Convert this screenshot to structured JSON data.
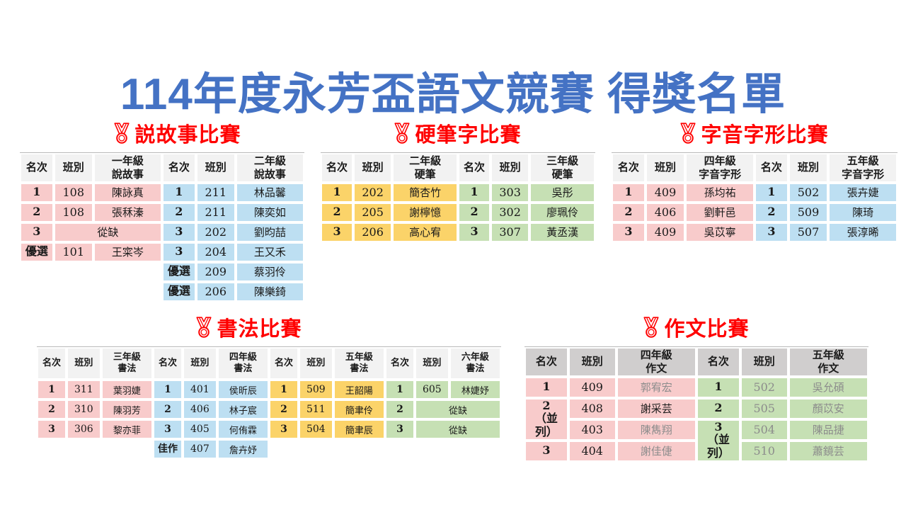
{
  "title": "114年度永芳盃語文競賽 得獎名單",
  "colors": {
    "title_blue": "#4472C4",
    "heading_red": "#FF0000",
    "pink": "#F8CBCB",
    "blue": "#BDDFF2",
    "yellow": "#FBD369",
    "green": "#C6E0B4",
    "header_light": "#F2F2F2",
    "header_gray": "#D0CECE",
    "muted_text": "#8C8C8C"
  },
  "icons": {
    "heading": "medal-icon"
  },
  "col_headers": {
    "rank": "名次",
    "class": "班別"
  },
  "sections": [
    {
      "heading": "説故事比賽",
      "groups": [
        {
          "color": "pink",
          "grade": "一年級\n說故事",
          "rows": [
            [
              {
                "t": "1",
                "rank": true
              },
              {
                "t": "108"
              },
              {
                "t": "陳詠真",
                "name": true
              }
            ],
            [
              {
                "t": "2",
                "rank": true
              },
              {
                "t": "108"
              },
              {
                "t": "張秝溱",
                "name": true
              }
            ],
            [
              {
                "t": "3",
                "rank": true
              },
              {
                "t": "從缺",
                "cs": 2,
                "name": true
              }
            ],
            [
              {
                "t": "優選",
                "rank": true
              },
              {
                "t": "101"
              },
              {
                "t": "王寀岑",
                "name": true
              }
            ]
          ]
        },
        {
          "color": "blue",
          "grade": "二年級\n說故事",
          "rows": [
            [
              {
                "t": "1",
                "rank": true
              },
              {
                "t": "211"
              },
              {
                "t": "林品馨",
                "name": true
              }
            ],
            [
              {
                "t": "2",
                "rank": true
              },
              {
                "t": "211"
              },
              {
                "t": "陳奕如",
                "name": true
              }
            ],
            [
              {
                "t": "3",
                "rank": true
              },
              {
                "t": "202"
              },
              {
                "t": "劉昀喆",
                "name": true
              }
            ],
            [
              {
                "t": "3",
                "rank": true
              },
              {
                "t": "204"
              },
              {
                "t": "王又禾",
                "name": true
              }
            ],
            [
              {
                "t": "優選",
                "rank": true
              },
              {
                "t": "209"
              },
              {
                "t": "蔡羽伶",
                "name": true
              }
            ],
            [
              {
                "t": "優選",
                "rank": true
              },
              {
                "t": "206"
              },
              {
                "t": "陳樂錡",
                "name": true
              }
            ]
          ]
        }
      ]
    },
    {
      "heading": "硬筆字比賽",
      "groups": [
        {
          "color": "yellow",
          "grade": "二年級\n硬筆",
          "rows": [
            [
              {
                "t": "1",
                "rank": true
              },
              {
                "t": "202"
              },
              {
                "t": "簡杏竹",
                "name": true
              }
            ],
            [
              {
                "t": "2",
                "rank": true
              },
              {
                "t": "205"
              },
              {
                "t": "謝檸憶",
                "name": true
              }
            ],
            [
              {
                "t": "3",
                "rank": true
              },
              {
                "t": "206"
              },
              {
                "t": "高心宥",
                "name": true
              }
            ]
          ]
        },
        {
          "color": "green",
          "grade": "三年級\n硬筆",
          "rows": [
            [
              {
                "t": "1",
                "rank": true
              },
              {
                "t": "303"
              },
              {
                "t": "吳彤",
                "name": true
              }
            ],
            [
              {
                "t": "2",
                "rank": true
              },
              {
                "t": "302"
              },
              {
                "t": "廖珮伶",
                "name": true
              }
            ],
            [
              {
                "t": "3",
                "rank": true
              },
              {
                "t": "307"
              },
              {
                "t": "黃丞漢",
                "name": true
              }
            ]
          ]
        }
      ]
    },
    {
      "heading": "字音字形比賽",
      "groups": [
        {
          "color": "pink",
          "grade": "四年級\n字音字形",
          "rows": [
            [
              {
                "t": "1",
                "rank": true
              },
              {
                "t": "409"
              },
              {
                "t": "孫均祐",
                "name": true
              }
            ],
            [
              {
                "t": "2",
                "rank": true
              },
              {
                "t": "406"
              },
              {
                "t": "劉軒邑",
                "name": true
              }
            ],
            [
              {
                "t": "3",
                "rank": true
              },
              {
                "t": "409"
              },
              {
                "t": "吳苡寧",
                "name": true
              }
            ]
          ]
        },
        {
          "color": "blue",
          "grade": "五年級\n字音字形",
          "rows": [
            [
              {
                "t": "1",
                "rank": true
              },
              {
                "t": "502"
              },
              {
                "t": "張卉婕",
                "name": true
              }
            ],
            [
              {
                "t": "2",
                "rank": true
              },
              {
                "t": "509"
              },
              {
                "t": "陳琦",
                "name": true
              }
            ],
            [
              {
                "t": "3",
                "rank": true
              },
              {
                "t": "507"
              },
              {
                "t": "張淳晞",
                "name": true
              }
            ]
          ]
        }
      ]
    },
    {
      "heading": "書法比賽",
      "groups": [
        {
          "color": "pink",
          "grade": "三年級\n書法",
          "rows": [
            [
              {
                "t": "1",
                "rank": true
              },
              {
                "t": "311"
              },
              {
                "t": "葉羽婕",
                "name": true
              }
            ],
            [
              {
                "t": "2",
                "rank": true
              },
              {
                "t": "310"
              },
              {
                "t": "陳羽芳",
                "name": true
              }
            ],
            [
              {
                "t": "3",
                "rank": true
              },
              {
                "t": "306"
              },
              {
                "t": "黎亦菲",
                "name": true
              }
            ]
          ]
        },
        {
          "color": "blue",
          "grade": "四年級\n書法",
          "rows": [
            [
              {
                "t": "1",
                "rank": true
              },
              {
                "t": "401"
              },
              {
                "t": "侯昕辰",
                "name": true
              }
            ],
            [
              {
                "t": "2",
                "rank": true
              },
              {
                "t": "406"
              },
              {
                "t": "林子宸",
                "name": true
              }
            ],
            [
              {
                "t": "3",
                "rank": true
              },
              {
                "t": "405"
              },
              {
                "t": "何侑霖",
                "name": true
              }
            ],
            [
              {
                "t": "佳作",
                "rank": true
              },
              {
                "t": "407"
              },
              {
                "t": "詹卉妤",
                "name": true
              }
            ]
          ]
        },
        {
          "color": "yellow",
          "grade": "五年級\n書法",
          "rows": [
            [
              {
                "t": "1",
                "rank": true
              },
              {
                "t": "509"
              },
              {
                "t": "王韶陽",
                "name": true
              }
            ],
            [
              {
                "t": "2",
                "rank": true
              },
              {
                "t": "511"
              },
              {
                "t": "簡聿伶",
                "name": true
              }
            ],
            [
              {
                "t": "3",
                "rank": true
              },
              {
                "t": "504"
              },
              {
                "t": "簡聿辰",
                "name": true
              }
            ]
          ]
        },
        {
          "color": "green",
          "grade": "六年級\n書法",
          "rows": [
            [
              {
                "t": "1",
                "rank": true
              },
              {
                "t": "605"
              },
              {
                "t": "林婕妤",
                "name": true
              }
            ],
            [
              {
                "t": "2",
                "rank": true
              },
              {
                "t": "從缺",
                "cs": 2,
                "name": true
              }
            ],
            [
              {
                "t": "3",
                "rank": true
              },
              {
                "t": "從缺",
                "cs": 2,
                "name": true
              }
            ]
          ]
        }
      ]
    },
    {
      "heading": "作文比賽",
      "groups": [
        {
          "color": "pink",
          "grade": "四年級\n作文",
          "rows": [
            [
              {
                "t": "1",
                "rank": true
              },
              {
                "t": "409"
              },
              {
                "t": "郭宥宏",
                "name": true,
                "muted": true
              }
            ],
            [
              {
                "t": "2\n（並列）",
                "rank": true,
                "rs": 2
              },
              {
                "t": "408"
              },
              {
                "t": "謝采芸",
                "name": true
              }
            ],
            [
              {
                "t": "403"
              },
              {
                "t": "陳雋翔",
                "name": true,
                "muted": true
              }
            ],
            [
              {
                "t": "3",
                "rank": true
              },
              {
                "t": "404"
              },
              {
                "t": "謝佳倢",
                "name": true,
                "muted": true
              }
            ]
          ]
        },
        {
          "color": "green",
          "grade": "五年級\n作文",
          "rows": [
            [
              {
                "t": "1",
                "rank": true
              },
              {
                "t": "502",
                "muted": true
              },
              {
                "t": "吳允碩",
                "name": true,
                "muted": true
              }
            ],
            [
              {
                "t": "2",
                "rank": true
              },
              {
                "t": "505",
                "muted": true
              },
              {
                "t": "顏苡安",
                "name": true,
                "muted": true
              }
            ],
            [
              {
                "t": "3\n（並列）",
                "rank": true,
                "rs": 2
              },
              {
                "t": "504",
                "muted": true
              },
              {
                "t": "陳品捷",
                "name": true,
                "muted": true
              }
            ],
            [
              {
                "t": "510",
                "muted": true
              },
              {
                "t": "蕭鏡芸",
                "name": true,
                "muted": true
              }
            ]
          ]
        }
      ]
    }
  ]
}
